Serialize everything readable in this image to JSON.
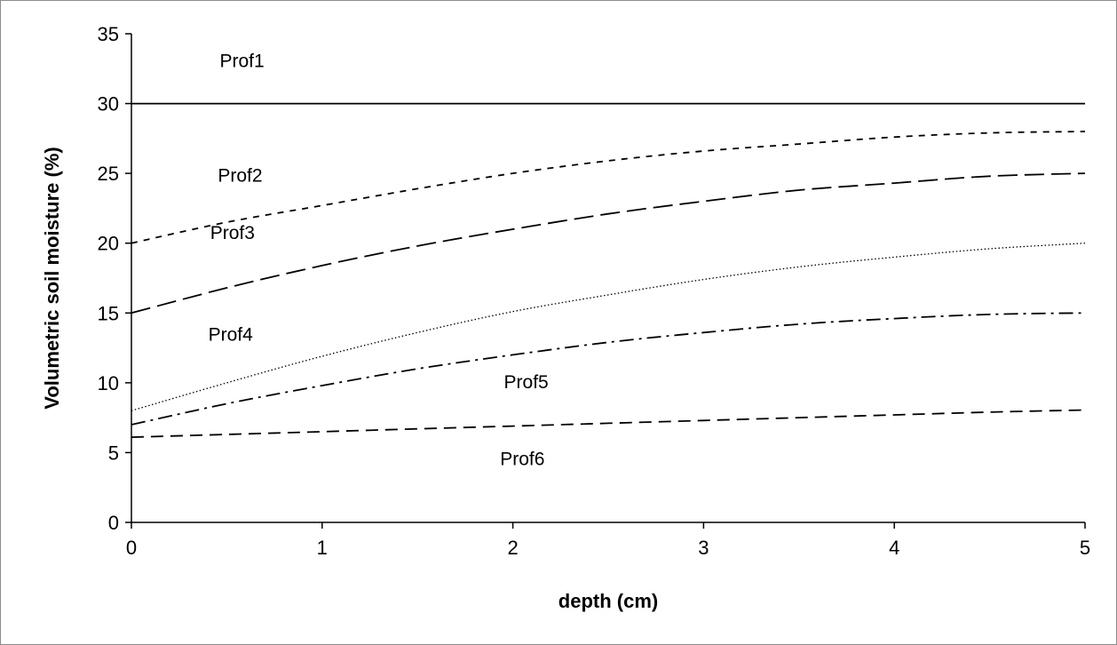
{
  "chart_data": {
    "type": "line",
    "title": "",
    "xlabel": "depth (cm)",
    "ylabel": "Volumetric soil moisture (%)",
    "xlim": [
      0,
      5
    ],
    "ylim": [
      0,
      35
    ],
    "xticks": [
      "0",
      "1",
      "2",
      "3",
      "4",
      "5"
    ],
    "yticks": [
      "0",
      "5",
      "10",
      "15",
      "20",
      "25",
      "30",
      "35"
    ],
    "grid": false,
    "legend": "none",
    "series": [
      {
        "name": "Prof1",
        "dash": "solid",
        "x": [
          0,
          1,
          2,
          3,
          4,
          5
        ],
        "y": [
          30,
          30,
          30,
          30,
          30,
          30
        ]
      },
      {
        "name": "Prof2",
        "dash": "short-dash",
        "x": [
          0,
          0.5,
          1,
          1.5,
          2,
          2.5,
          3,
          3.5,
          4,
          4.5,
          5
        ],
        "y": [
          20,
          21.5,
          22.7,
          23.9,
          25,
          25.9,
          26.6,
          27.1,
          27.6,
          27.9,
          28
        ]
      },
      {
        "name": "Prof3",
        "dash": "long-dash",
        "x": [
          0,
          0.5,
          1,
          1.5,
          2,
          2.5,
          3,
          3.5,
          4,
          4.5,
          5
        ],
        "y": [
          15,
          16.8,
          18.4,
          19.8,
          21,
          22.1,
          23.0,
          23.8,
          24.3,
          24.8,
          25
        ]
      },
      {
        "name": "Prof4",
        "dash": "dotted",
        "x": [
          0,
          0.5,
          1,
          1.5,
          2,
          2.5,
          3,
          3.5,
          4,
          4.5,
          5
        ],
        "y": [
          8,
          10,
          11.9,
          13.6,
          15.1,
          16.3,
          17.4,
          18.3,
          19.0,
          19.6,
          20
        ]
      },
      {
        "name": "Prof5",
        "dash": "dash-dot",
        "x": [
          0,
          0.5,
          1,
          1.5,
          2,
          2.5,
          3,
          3.5,
          4,
          4.5,
          5
        ],
        "y": [
          7,
          8.5,
          9.8,
          11.0,
          12.0,
          12.9,
          13.6,
          14.2,
          14.6,
          14.9,
          15
        ]
      },
      {
        "name": "Prof6",
        "dash": "medium-dash",
        "x": [
          0,
          0.5,
          1,
          1.5,
          2,
          2.5,
          3,
          3.5,
          4,
          4.5,
          5
        ],
        "y": [
          6.1,
          6.3,
          6.5,
          6.7,
          6.9,
          7.1,
          7.3,
          7.5,
          7.7,
          7.9,
          8.05
        ]
      }
    ],
    "annotations": [
      {
        "text": "Prof1",
        "x": 0.58,
        "y": 32.6
      },
      {
        "text": "Prof2",
        "x": 0.57,
        "y": 24.4
      },
      {
        "text": "Prof3",
        "x": 0.53,
        "y": 20.3
      },
      {
        "text": "Prof4",
        "x": 0.52,
        "y": 13.0
      },
      {
        "text": "Prof5",
        "x": 2.07,
        "y": 9.6
      },
      {
        "text": "Prof6",
        "x": 2.05,
        "y": 4.1
      }
    ]
  }
}
